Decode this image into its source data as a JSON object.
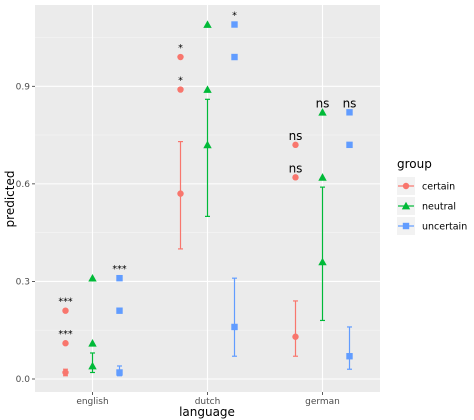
{
  "chart_data": {
    "type": "scatter",
    "xlabel": "language",
    "ylabel": "predicted",
    "categories": [
      "english",
      "dutch",
      "german"
    ],
    "y_ticks": [
      0.0,
      0.3,
      0.6,
      0.9
    ],
    "y_tick_labels": [
      "0.0",
      "0.3",
      "0.6",
      "0.9"
    ],
    "ylim": [
      -0.04,
      1.15
    ],
    "grid": true,
    "legend": {
      "title": "group",
      "placement": "right"
    },
    "colors": {
      "certain": "#F8766D",
      "neutral": "#00BA38",
      "uncertain": "#619CFF"
    },
    "series": [
      {
        "name": "certain",
        "marker": "circle",
        "estimates": [
          {
            "category": "english",
            "mean": 0.02,
            "lower": 0.01,
            "upper": 0.03
          },
          {
            "category": "dutch",
            "mean": 0.57,
            "lower": 0.4,
            "upper": 0.73
          },
          {
            "category": "german",
            "mean": 0.13,
            "lower": 0.07,
            "upper": 0.24
          }
        ],
        "markers": [
          {
            "category": "english",
            "y": 0.21,
            "label": "***"
          },
          {
            "category": "english",
            "y": 0.11,
            "label": "***"
          },
          {
            "category": "dutch",
            "y": 0.99,
            "label": "*"
          },
          {
            "category": "dutch",
            "y": 0.89,
            "label": "*"
          },
          {
            "category": "german",
            "y": 0.72,
            "label": "ns"
          },
          {
            "category": "german",
            "y": 0.62,
            "label": "ns"
          }
        ]
      },
      {
        "name": "neutral",
        "marker": "triangle",
        "estimates": [
          {
            "category": "english",
            "mean": 0.04,
            "lower": 0.02,
            "upper": 0.08
          },
          {
            "category": "dutch",
            "mean": 0.72,
            "lower": 0.5,
            "upper": 0.86
          },
          {
            "category": "german",
            "mean": 0.36,
            "lower": 0.18,
            "upper": 0.59
          }
        ],
        "markers": [
          {
            "category": "english",
            "y": 0.31,
            "label": ""
          },
          {
            "category": "english",
            "y": 0.11,
            "label": ""
          },
          {
            "category": "dutch",
            "y": 1.09,
            "label": ""
          },
          {
            "category": "dutch",
            "y": 0.89,
            "label": ""
          },
          {
            "category": "german",
            "y": 0.82,
            "label": "ns"
          },
          {
            "category": "german",
            "y": 0.62,
            "label": ""
          }
        ]
      },
      {
        "name": "uncertain",
        "marker": "square",
        "estimates": [
          {
            "category": "english",
            "mean": 0.02,
            "lower": 0.01,
            "upper": 0.04
          },
          {
            "category": "dutch",
            "mean": 0.16,
            "lower": 0.07,
            "upper": 0.31
          },
          {
            "category": "german",
            "mean": 0.07,
            "lower": 0.03,
            "upper": 0.16
          }
        ],
        "markers": [
          {
            "category": "english",
            "y": 0.31,
            "label": "***"
          },
          {
            "category": "english",
            "y": 0.21,
            "label": ""
          },
          {
            "category": "dutch",
            "y": 1.09,
            "label": "*"
          },
          {
            "category": "dutch",
            "y": 0.99,
            "label": ""
          },
          {
            "category": "german",
            "y": 0.82,
            "label": "ns"
          },
          {
            "category": "german",
            "y": 0.72,
            "label": ""
          }
        ]
      }
    ]
  }
}
